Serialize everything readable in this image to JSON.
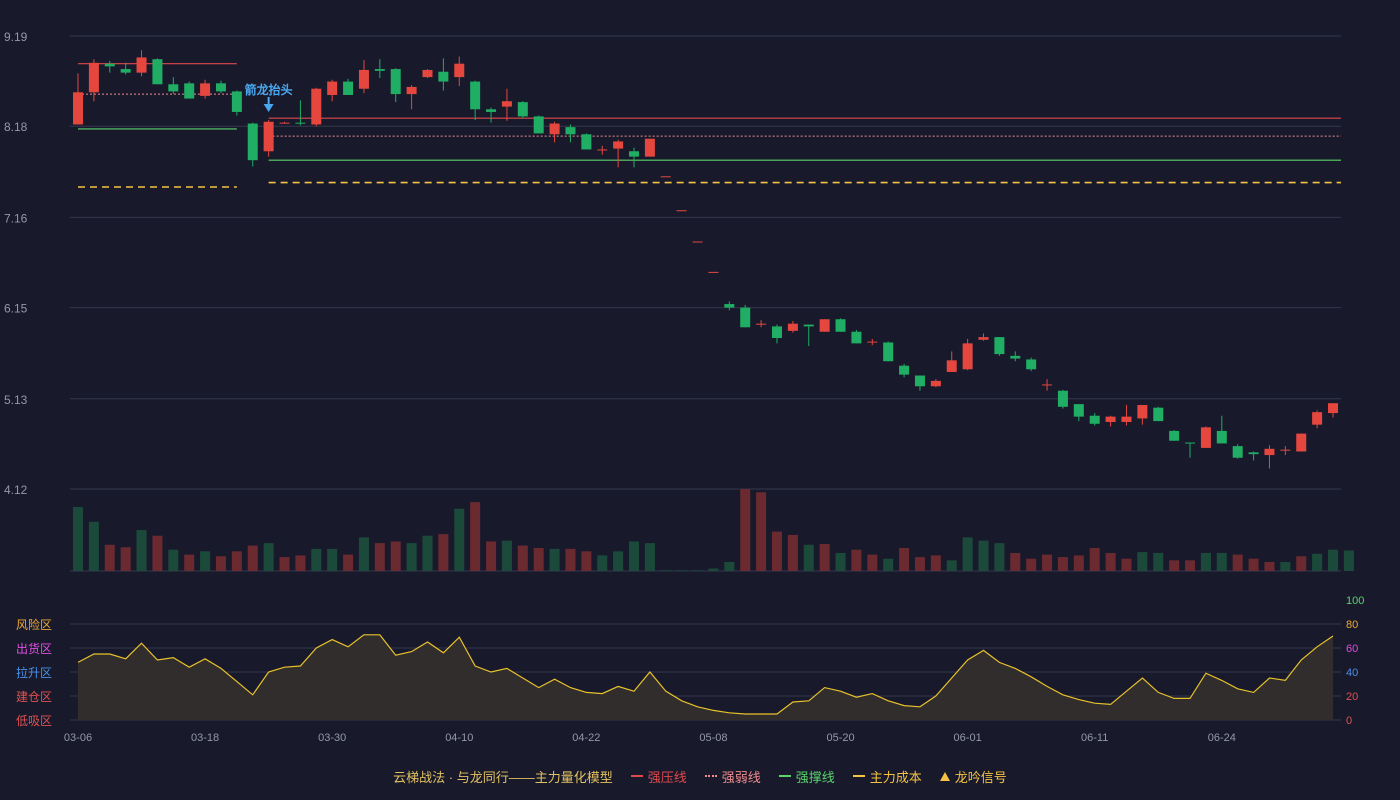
{
  "colors": {
    "background": "#181a2c",
    "grid": "#34364a",
    "axis_text": "#9598a8",
    "up": "#e5473f",
    "down": "#1fae63",
    "vol_up": "#6a2a30",
    "vol_down": "#1c4a3a",
    "strong_pressure": "#e0484c",
    "weak": "#f08a8a",
    "strong_support": "#5ad36a",
    "main_cost": "#f5c242",
    "osc_line": "#e8c12a",
    "osc_fill": "#322e2c",
    "signal": "#4aa8f0"
  },
  "chart_data": {
    "type": "candlestick",
    "x_ticks": [
      "03-06",
      "03-18",
      "03-30",
      "04-10",
      "04-22",
      "05-08",
      "05-20",
      "06-01",
      "06-11",
      "06-24"
    ],
    "y_ticks": [
      9.19,
      8.18,
      7.16,
      6.15,
      5.13,
      4.12
    ],
    "ylim": [
      4.12,
      9.19
    ],
    "candles": [
      [
        8.2,
        8.56,
        8.2,
        8.77
      ],
      [
        8.56,
        8.89,
        8.46,
        8.93
      ],
      [
        8.88,
        8.85,
        8.78,
        8.91
      ],
      [
        8.82,
        8.78,
        8.76,
        8.89
      ],
      [
        8.78,
        8.95,
        8.74,
        9.03
      ],
      [
        8.93,
        8.65,
        8.65,
        8.94
      ],
      [
        8.65,
        8.57,
        8.54,
        8.73
      ],
      [
        8.66,
        8.49,
        8.49,
        8.68
      ],
      [
        8.52,
        8.66,
        8.49,
        8.7
      ],
      [
        8.66,
        8.57,
        8.55,
        8.69
      ],
      [
        8.57,
        8.34,
        8.3,
        8.58
      ],
      [
        8.21,
        7.8,
        7.73,
        8.22
      ],
      [
        7.9,
        8.23,
        7.84,
        8.25
      ],
      [
        8.22,
        8.22,
        8.21,
        8.23
      ],
      [
        8.22,
        8.21,
        8.19,
        8.47
      ],
      [
        8.2,
        8.6,
        8.18,
        8.61
      ],
      [
        8.53,
        8.68,
        8.46,
        8.7
      ],
      [
        8.68,
        8.53,
        8.53,
        8.71
      ],
      [
        8.6,
        8.81,
        8.55,
        8.92
      ],
      [
        8.82,
        8.8,
        8.72,
        8.93
      ],
      [
        8.82,
        8.54,
        8.45,
        8.83
      ],
      [
        8.54,
        8.62,
        8.37,
        8.64
      ],
      [
        8.73,
        8.81,
        8.72,
        8.82
      ],
      [
        8.79,
        8.68,
        8.58,
        8.94
      ],
      [
        8.73,
        8.88,
        8.63,
        8.96
      ],
      [
        8.68,
        8.37,
        8.25,
        8.69
      ],
      [
        8.37,
        8.34,
        8.22,
        8.39
      ],
      [
        8.4,
        8.46,
        8.24,
        8.6
      ],
      [
        8.45,
        8.29,
        8.27,
        8.46
      ],
      [
        8.29,
        8.1,
        8.1,
        8.3
      ],
      [
        8.09,
        8.21,
        8.0,
        8.23
      ],
      [
        8.17,
        8.09,
        8.0,
        8.2
      ],
      [
        8.09,
        7.92,
        7.92,
        8.1
      ],
      [
        7.92,
        7.92,
        7.86,
        7.96
      ],
      [
        7.93,
        8.01,
        7.72,
        8.03
      ],
      [
        7.9,
        7.84,
        7.72,
        7.94
      ],
      [
        7.84,
        8.04,
        7.84,
        8.04
      ],
      [
        7.62,
        7.62,
        7.62,
        7.62
      ],
      [
        7.24,
        7.24,
        7.24,
        7.24
      ],
      [
        6.89,
        6.89,
        6.89,
        6.89
      ],
      [
        6.55,
        6.55,
        6.55,
        6.55
      ],
      [
        6.19,
        6.15,
        6.12,
        6.22
      ],
      [
        6.15,
        5.93,
        5.93,
        6.18
      ],
      [
        5.97,
        5.97,
        5.93,
        6.01
      ],
      [
        5.94,
        5.81,
        5.75,
        5.96
      ],
      [
        5.89,
        5.97,
        5.87,
        6.0
      ],
      [
        5.96,
        5.94,
        5.72,
        5.96
      ],
      [
        5.88,
        6.02,
        5.88,
        6.02
      ],
      [
        6.02,
        5.88,
        5.88,
        6.03
      ],
      [
        5.88,
        5.75,
        5.75,
        5.9
      ],
      [
        5.77,
        5.77,
        5.73,
        5.8
      ],
      [
        5.76,
        5.55,
        5.55,
        5.77
      ],
      [
        5.5,
        5.4,
        5.37,
        5.52
      ],
      [
        5.39,
        5.27,
        5.22,
        5.39
      ],
      [
        5.27,
        5.33,
        5.26,
        5.35
      ],
      [
        5.43,
        5.56,
        5.43,
        5.66
      ],
      [
        5.46,
        5.75,
        5.45,
        5.8
      ],
      [
        5.79,
        5.82,
        5.78,
        5.86
      ],
      [
        5.82,
        5.63,
        5.61,
        5.82
      ],
      [
        5.61,
        5.58,
        5.55,
        5.66
      ],
      [
        5.57,
        5.46,
        5.44,
        5.59
      ],
      [
        5.29,
        5.29,
        5.22,
        5.35
      ],
      [
        5.22,
        5.04,
        5.02,
        5.23
      ],
      [
        5.07,
        4.93,
        4.88,
        5.07
      ],
      [
        4.94,
        4.85,
        4.83,
        4.97
      ],
      [
        4.87,
        4.93,
        4.82,
        4.94
      ],
      [
        4.87,
        4.93,
        4.83,
        5.06
      ],
      [
        4.91,
        5.06,
        4.84,
        5.06
      ],
      [
        5.03,
        4.88,
        4.88,
        5.04
      ],
      [
        4.77,
        4.66,
        4.66,
        4.78
      ],
      [
        4.64,
        4.63,
        4.47,
        4.64
      ],
      [
        4.58,
        4.81,
        4.58,
        4.82
      ],
      [
        4.77,
        4.63,
        4.63,
        4.94
      ],
      [
        4.6,
        4.47,
        4.46,
        4.62
      ],
      [
        4.53,
        4.51,
        4.44,
        4.54
      ],
      [
        4.5,
        4.57,
        4.35,
        4.61
      ],
      [
        4.55,
        4.56,
        4.5,
        4.6
      ],
      [
        4.54,
        4.74,
        4.54,
        4.74
      ],
      [
        4.84,
        4.98,
        4.8,
        5.0
      ],
      [
        4.97,
        5.08,
        4.92,
        5.08
      ]
    ],
    "volume": [
      [
        0.78,
        0
      ],
      [
        0.6,
        0
      ],
      [
        0.32,
        1
      ],
      [
        0.29,
        1
      ],
      [
        0.5,
        0
      ],
      [
        0.43,
        1
      ],
      [
        0.26,
        0
      ],
      [
        0.2,
        1
      ],
      [
        0.24,
        0
      ],
      [
        0.18,
        1
      ],
      [
        0.24,
        1
      ],
      [
        0.31,
        1
      ],
      [
        0.34,
        0
      ],
      [
        0.17,
        1
      ],
      [
        0.19,
        1
      ],
      [
        0.27,
        0
      ],
      [
        0.27,
        0
      ],
      [
        0.2,
        1
      ],
      [
        0.41,
        0
      ],
      [
        0.34,
        1
      ],
      [
        0.36,
        1
      ],
      [
        0.34,
        0
      ],
      [
        0.43,
        0
      ],
      [
        0.45,
        1
      ],
      [
        0.76,
        0
      ],
      [
        0.84,
        1
      ],
      [
        0.36,
        1
      ],
      [
        0.37,
        0
      ],
      [
        0.31,
        1
      ],
      [
        0.28,
        1
      ],
      [
        0.27,
        0
      ],
      [
        0.27,
        1
      ],
      [
        0.24,
        1
      ],
      [
        0.19,
        0
      ],
      [
        0.24,
        0
      ],
      [
        0.36,
        0
      ],
      [
        0.34,
        0
      ],
      [
        0.01,
        0
      ],
      [
        0.01,
        0
      ],
      [
        0.01,
        0
      ],
      [
        0.03,
        0
      ],
      [
        0.11,
        0
      ],
      [
        1.0,
        1
      ],
      [
        0.96,
        1
      ],
      [
        0.48,
        1
      ],
      [
        0.44,
        1
      ],
      [
        0.32,
        0
      ],
      [
        0.33,
        1
      ],
      [
        0.22,
        0
      ],
      [
        0.26,
        1
      ],
      [
        0.2,
        1
      ],
      [
        0.15,
        0
      ],
      [
        0.28,
        1
      ],
      [
        0.17,
        1
      ],
      [
        0.19,
        1
      ],
      [
        0.13,
        0
      ],
      [
        0.41,
        0
      ],
      [
        0.37,
        0
      ],
      [
        0.34,
        0
      ],
      [
        0.22,
        1
      ],
      [
        0.15,
        1
      ],
      [
        0.2,
        1
      ],
      [
        0.17,
        1
      ],
      [
        0.19,
        1
      ],
      [
        0.28,
        1
      ],
      [
        0.22,
        1
      ],
      [
        0.15,
        1
      ],
      [
        0.23,
        0
      ],
      [
        0.22,
        0
      ],
      [
        0.13,
        1
      ],
      [
        0.13,
        1
      ],
      [
        0.22,
        0
      ],
      [
        0.22,
        0
      ],
      [
        0.2,
        1
      ],
      [
        0.15,
        1
      ],
      [
        0.11,
        1
      ],
      [
        0.11,
        0
      ],
      [
        0.18,
        1
      ],
      [
        0.21,
        0
      ],
      [
        0.26,
        0
      ],
      [
        0.25,
        0
      ]
    ],
    "strong_pressure": [
      {
        "from": 0,
        "to": 10,
        "value": 8.88
      },
      {
        "from": 12,
        "to": 80,
        "value": 8.27
      }
    ],
    "weak_line": [
      {
        "from": 0,
        "to": 10,
        "value": 8.54
      },
      {
        "from": 12,
        "to": 80,
        "value": 8.07
      }
    ],
    "strong_support": [
      {
        "from": 0,
        "to": 10,
        "value": 8.15
      },
      {
        "from": 12,
        "to": 80,
        "value": 7.8
      }
    ],
    "main_cost": [
      {
        "from": 0,
        "to": 10,
        "value": 7.5
      },
      {
        "from": 12,
        "to": 80,
        "value": 7.55
      }
    ],
    "signal": {
      "index": 12,
      "label": "箭龙抬头"
    },
    "oscillator": {
      "ylim": [
        0,
        100
      ],
      "right_ticks": [
        {
          "value": 100,
          "color": "#5ad36a"
        },
        {
          "value": 80,
          "color": "#f0a830"
        },
        {
          "value": 60,
          "color": "#e04ee0"
        },
        {
          "value": 40,
          "color": "#4a90e8"
        },
        {
          "value": 20,
          "color": "#e05050"
        },
        {
          "value": 0,
          "color": "#e05050"
        }
      ],
      "zones": [
        {
          "label": "风险区",
          "value": 80,
          "color": "#f0a830"
        },
        {
          "label": "出货区",
          "value": 60,
          "color": "#e04ee0"
        },
        {
          "label": "拉升区",
          "value": 40,
          "color": "#4a90e8"
        },
        {
          "label": "建仓区",
          "value": 20,
          "color": "#e05050"
        },
        {
          "label": "低吸区",
          "value": 0,
          "color": "#e05050"
        }
      ],
      "values": [
        48,
        55,
        55,
        51,
        64,
        50,
        52,
        44,
        51,
        43,
        32,
        21,
        40,
        44,
        45,
        60,
        67,
        61,
        71,
        71,
        54,
        57,
        65,
        56,
        69,
        45,
        40,
        43,
        35,
        27,
        34,
        27,
        23,
        22,
        28,
        24,
        40,
        24,
        16,
        11,
        8,
        6,
        5,
        5,
        5,
        15,
        16,
        27,
        24,
        19,
        22,
        16,
        12,
        11,
        20,
        35,
        50,
        58,
        48,
        43,
        36,
        28,
        21,
        17,
        14,
        13,
        24,
        35,
        23,
        18,
        18,
        39,
        33,
        26,
        23,
        35,
        33,
        50,
        61,
        70
      ]
    }
  },
  "legend": {
    "title": "云梯战法 · 与龙同行——主力量化模型",
    "items": [
      {
        "label": "强压线",
        "color": "#e0484c",
        "style": "solid"
      },
      {
        "label": "强弱线",
        "color": "#f08a8a",
        "style": "dotted"
      },
      {
        "label": "强撑线",
        "color": "#5ad36a",
        "style": "solid"
      },
      {
        "label": "主力成本",
        "color": "#f5c242",
        "style": "dashed"
      },
      {
        "label": "龙吟信号",
        "color": "#f5c242",
        "style": "triangle"
      }
    ]
  }
}
